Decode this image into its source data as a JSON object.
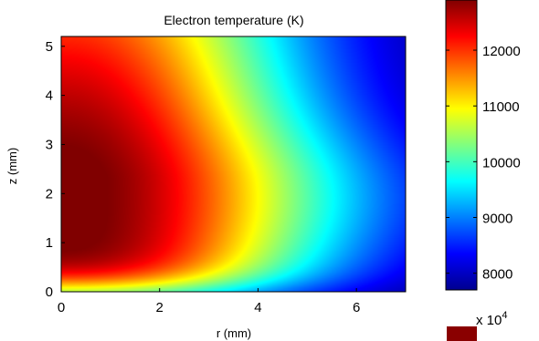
{
  "chart_data": {
    "type": "heatmap",
    "title": "Electron temperature (K)",
    "xlabel": "r (mm)",
    "ylabel": "z (mm)",
    "xlim": [
      0,
      7
    ],
    "ylim": [
      0,
      5.2
    ],
    "x_ticks": [
      "0",
      "2",
      "4",
      "6"
    ],
    "y_ticks": [
      "0",
      "1",
      "2",
      "3",
      "4",
      "5"
    ],
    "colorbar": {
      "range": [
        7700,
        12900
      ],
      "ticks": [
        "8000",
        "9000",
        "10000",
        "11000",
        "12000"
      ],
      "colormap": "jet"
    },
    "second_colorbar_multiplier": "x 10",
    "second_colorbar_exponent": "4",
    "field": {
      "peak_temperature": 12900,
      "peak_location": [
        0.6,
        2.3
      ],
      "min_temperature": 7700,
      "min_location": [
        7.0,
        5.2
      ]
    }
  }
}
